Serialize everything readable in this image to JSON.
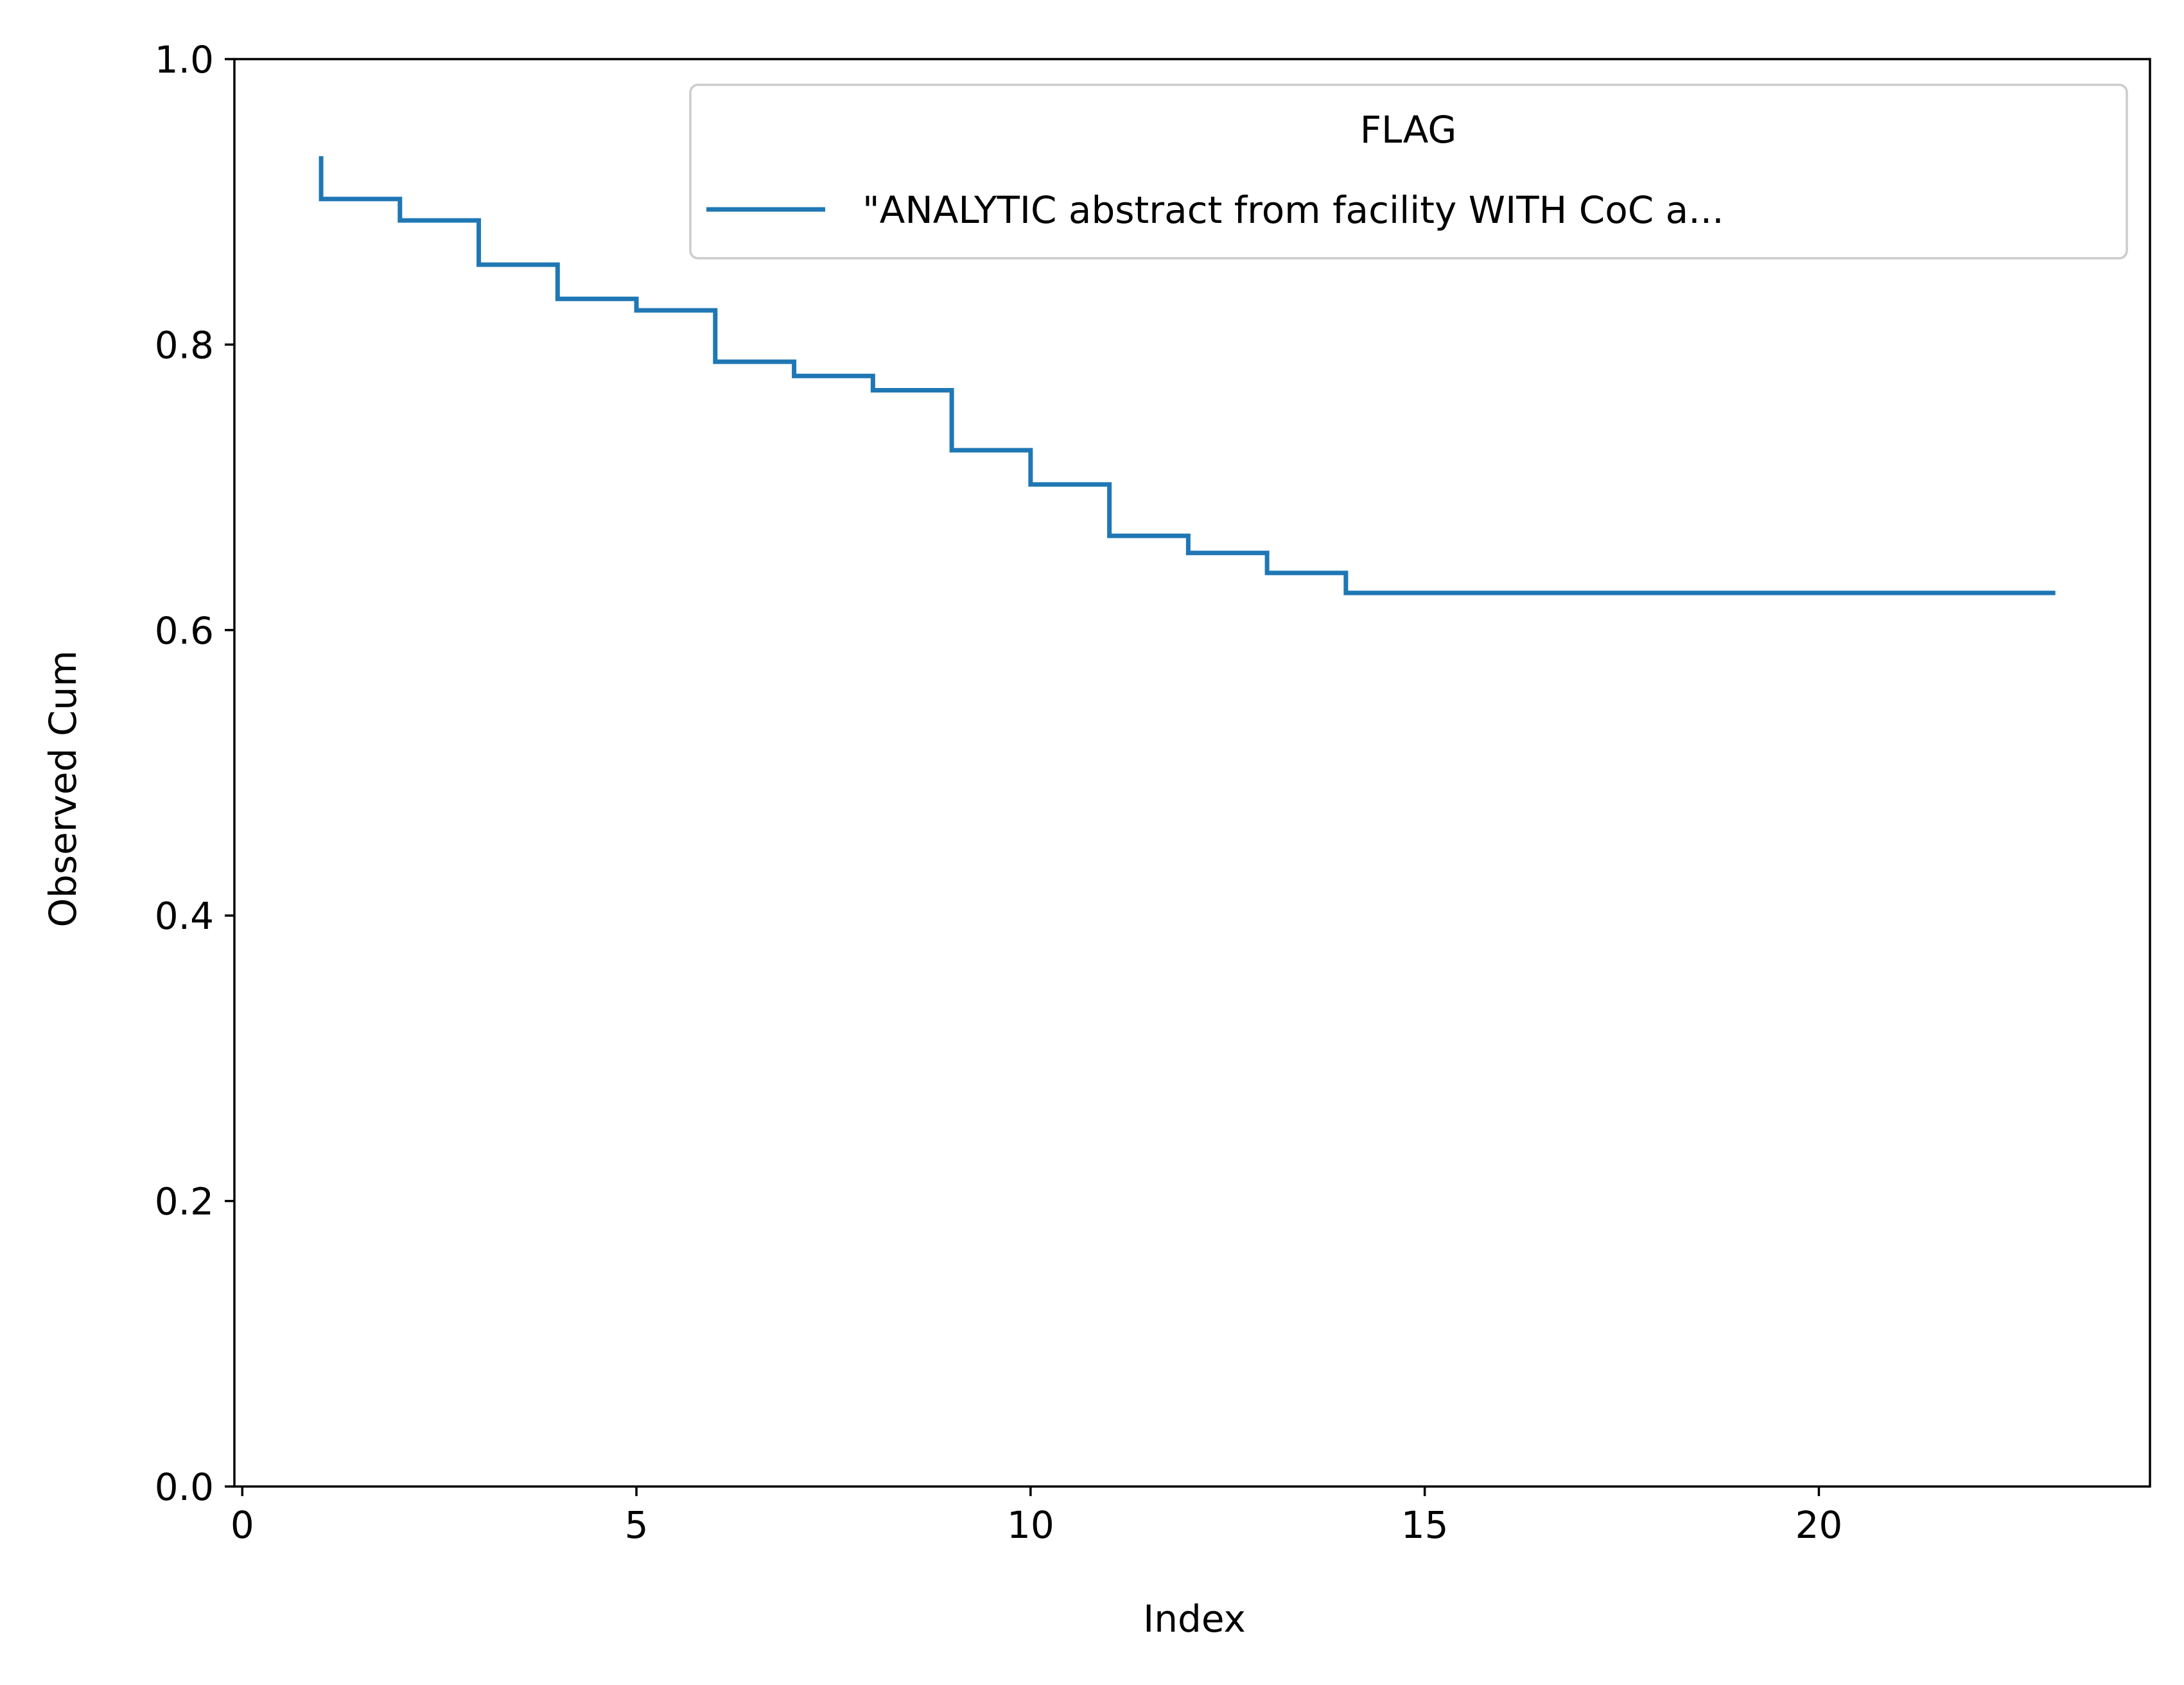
{
  "chart_data": {
    "type": "line",
    "step": "post",
    "title": "",
    "xlabel": "Index",
    "ylabel": "Observed Cum",
    "xlim": [
      -0.1,
      24.2
    ],
    "ylim": [
      0.0,
      1.0
    ],
    "xticks": [
      0,
      5,
      10,
      15,
      20
    ],
    "xtick_labels": [
      "0",
      "5",
      "10",
      "15",
      "20"
    ],
    "yticks": [
      0.0,
      0.2,
      0.4,
      0.6,
      0.8,
      1.0
    ],
    "ytick_labels": [
      "0.0",
      "0.2",
      "0.4",
      "0.6",
      "0.8",
      "1.0"
    ],
    "grid": false,
    "legend": {
      "title": "FLAG",
      "placement": "upper right"
    },
    "series": [
      {
        "name": "\"ANALYTIC abstract from facility WITH CoC a...",
        "color": "#1f77b4",
        "x": [
          1,
          1,
          2,
          3,
          4,
          5,
          6,
          7,
          8,
          9,
          10,
          11,
          12,
          13,
          14,
          23
        ],
        "y": [
          0.932,
          0.902,
          0.887,
          0.856,
          0.832,
          0.824,
          0.788,
          0.778,
          0.768,
          0.726,
          0.702,
          0.666,
          0.654,
          0.64,
          0.626,
          0.626
        ]
      }
    ]
  }
}
